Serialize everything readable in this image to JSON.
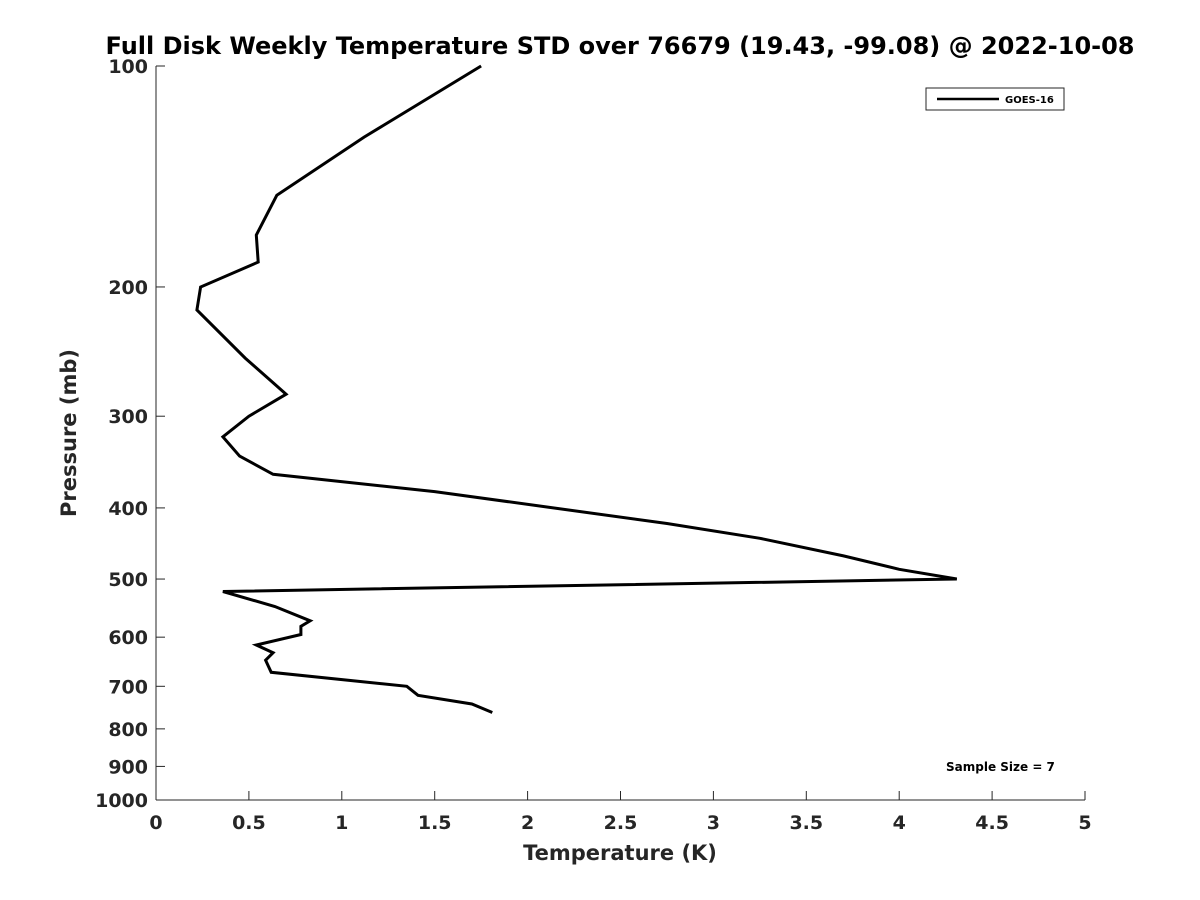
{
  "chart_data": {
    "type": "line",
    "title": "Full Disk Weekly Temperature STD over 76679 (19.43, -99.08) @ 2022-10-08",
    "xlabel": "Temperature (K)",
    "ylabel": "Pressure (mb)",
    "xlim": [
      0,
      5
    ],
    "ylim": [
      100,
      1000
    ],
    "y_scale": "log",
    "y_reversed": true,
    "x_ticks": [
      0,
      0.5,
      1,
      1.5,
      2,
      2.5,
      3,
      3.5,
      4,
      4.5,
      5
    ],
    "x_tick_labels": [
      "0",
      "0.5",
      "1",
      "1.5",
      "2",
      "2.5",
      "3",
      "3.5",
      "4",
      "4.5",
      "5"
    ],
    "y_ticks": [
      100,
      200,
      300,
      400,
      500,
      600,
      700,
      800,
      900,
      1000
    ],
    "y_tick_labels": [
      "100",
      "200",
      "300",
      "400",
      "500",
      "600",
      "700",
      "800",
      "900",
      "1000"
    ],
    "legend": {
      "position": "top-right",
      "entries": [
        "GOES-16"
      ]
    },
    "annotation": "Sample Size = 7",
    "series": [
      {
        "name": "GOES-16",
        "color": "#000000",
        "points": [
          {
            "x": 1.75,
            "p": 100
          },
          {
            "x": 1.12,
            "p": 125
          },
          {
            "x": 0.65,
            "p": 150
          },
          {
            "x": 0.54,
            "p": 170
          },
          {
            "x": 0.55,
            "p": 185
          },
          {
            "x": 0.24,
            "p": 200
          },
          {
            "x": 0.22,
            "p": 215
          },
          {
            "x": 0.48,
            "p": 250
          },
          {
            "x": 0.7,
            "p": 280
          },
          {
            "x": 0.5,
            "p": 300
          },
          {
            "x": 0.36,
            "p": 320
          },
          {
            "x": 0.45,
            "p": 340
          },
          {
            "x": 0.63,
            "p": 360
          },
          {
            "x": 1.5,
            "p": 380
          },
          {
            "x": 2.75,
            "p": 420
          },
          {
            "x": 3.25,
            "p": 440
          },
          {
            "x": 3.7,
            "p": 465
          },
          {
            "x": 4.0,
            "p": 485
          },
          {
            "x": 4.31,
            "p": 500
          },
          {
            "x": 0.36,
            "p": 520
          },
          {
            "x": 0.64,
            "p": 545
          },
          {
            "x": 0.83,
            "p": 570
          },
          {
            "x": 0.78,
            "p": 580
          },
          {
            "x": 0.78,
            "p": 595
          },
          {
            "x": 0.54,
            "p": 615
          },
          {
            "x": 0.63,
            "p": 630
          },
          {
            "x": 0.59,
            "p": 645
          },
          {
            "x": 0.62,
            "p": 670
          },
          {
            "x": 1.35,
            "p": 700
          },
          {
            "x": 1.41,
            "p": 720
          },
          {
            "x": 1.7,
            "p": 740
          },
          {
            "x": 1.81,
            "p": 760
          }
        ]
      }
    ]
  }
}
